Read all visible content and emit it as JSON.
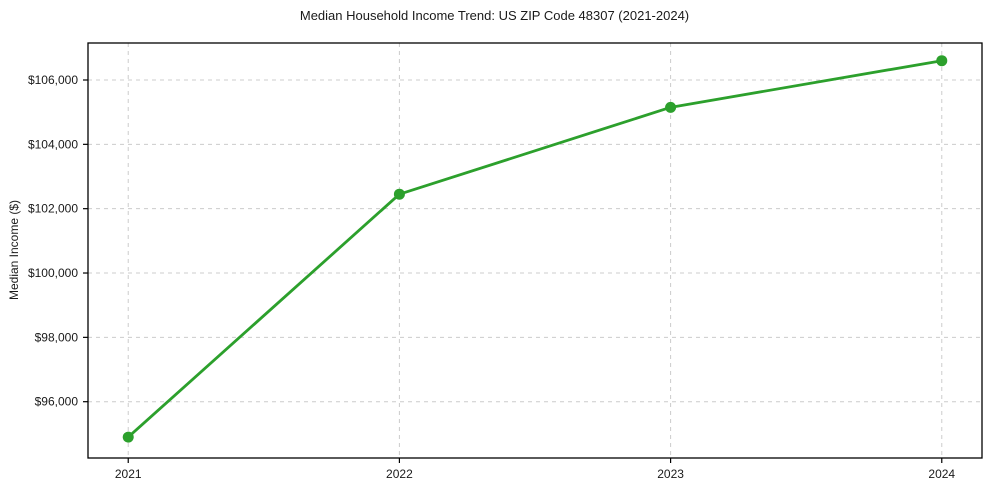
{
  "chart": {
    "title": "Median Household Income Trend: US ZIP Code 48307 (2021-2024)",
    "ylabel": "Median Income ($)"
  },
  "chart_data": {
    "type": "line",
    "title": "Median Household Income Trend: US ZIP Code 48307 (2021-2024)",
    "xlabel": "",
    "ylabel": "Median Income ($)",
    "categories": [
      "2021",
      "2022",
      "2023",
      "2024"
    ],
    "values": [
      94900,
      102450,
      105150,
      106600
    ],
    "ylim": [
      94250,
      107150
    ],
    "yticks": [
      96000,
      98000,
      100000,
      102000,
      104000,
      106000
    ],
    "ytick_prefix": "$",
    "legend": "none",
    "grid": "dashed-both-axes",
    "colors": {
      "line": "#2ca02c",
      "marker": "#2ca02c",
      "grid": "#cccccc",
      "spine": "#000000",
      "text": "#1a1a1a",
      "background": "#ffffff"
    }
  }
}
